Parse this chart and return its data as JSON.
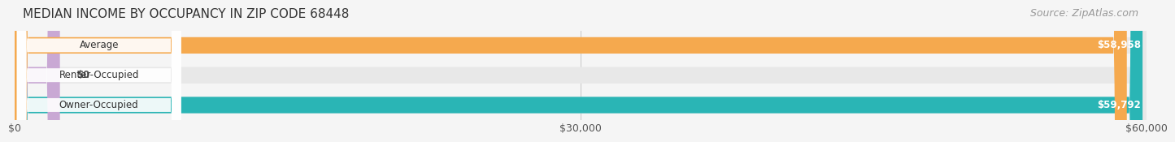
{
  "title": "MEDIAN INCOME BY OCCUPANCY IN ZIP CODE 68448",
  "source": "Source: ZipAtlas.com",
  "categories": [
    "Owner-Occupied",
    "Renter-Occupied",
    "Average"
  ],
  "values": [
    59792,
    0,
    58958
  ],
  "bar_colors": [
    "#2ab5b5",
    "#c9a8d4",
    "#f5a94e"
  ],
  "label_colors": [
    "#ffffff",
    "#555555",
    "#ffffff"
  ],
  "value_labels": [
    "$59,792",
    "$0",
    "$58,958"
  ],
  "xlim": [
    0,
    60000
  ],
  "xticks": [
    0,
    30000,
    60000
  ],
  "xtick_labels": [
    "$0",
    "$30,000",
    "$60,000"
  ],
  "background_color": "#f5f5f5",
  "bar_background_color": "#e8e8e8",
  "title_fontsize": 11,
  "source_fontsize": 9,
  "bar_height": 0.55,
  "bar_gap": 0.18
}
